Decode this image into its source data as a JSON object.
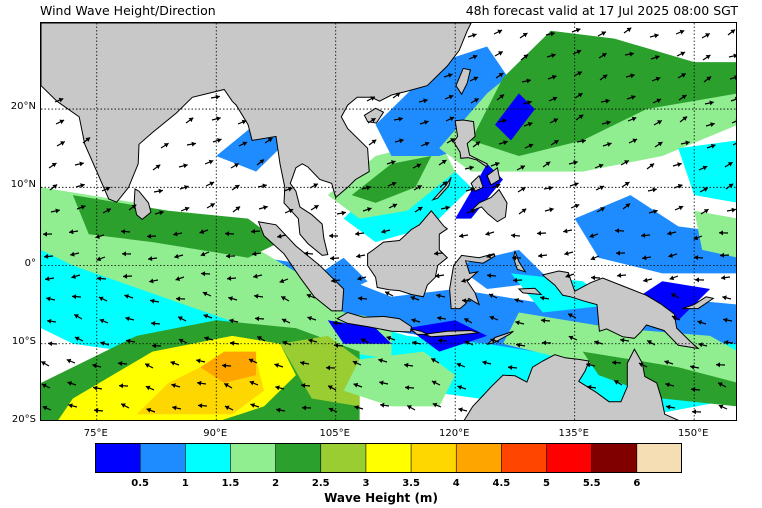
{
  "header": {
    "title": "Wind Wave Height/Direction",
    "forecast": "48h forecast valid at 17 Jul 2025 08:00 SGT"
  },
  "map": {
    "lon_range": [
      68,
      155.5
    ],
    "lat_range": [
      -20,
      31
    ],
    "grid_lons": [
      75,
      90,
      105,
      120,
      135,
      150
    ],
    "grid_lats": [
      20,
      10,
      0,
      -10,
      -20
    ],
    "lat_labels": [
      {
        "lat": 20,
        "text": "20°N"
      },
      {
        "lat": 10,
        "text": "10°N"
      },
      {
        "lat": 0,
        "text": "0°"
      },
      {
        "lat": -10,
        "text": "10°S"
      },
      {
        "lat": -20,
        "text": "20°S"
      }
    ],
    "lon_labels": [
      {
        "lon": 75,
        "text": "75°E"
      },
      {
        "lon": 90,
        "text": "90°E"
      },
      {
        "lon": 105,
        "text": "105°E"
      },
      {
        "lon": 120,
        "text": "120°E"
      },
      {
        "lon": 135,
        "text": "135°E"
      },
      {
        "lon": 150,
        "text": "150°E"
      }
    ],
    "land_color": "#c8c8c8"
  },
  "colorbar": {
    "title": "Wave Height (m)",
    "colors": [
      "#0000ff",
      "#1e8cff",
      "#00ffff",
      "#90ee90",
      "#2ca02c",
      "#9acd32",
      "#ffff00",
      "#ffd700",
      "#ffa500",
      "#ff4500",
      "#ff0000",
      "#800000",
      "#f5deb3"
    ],
    "ticks": [
      "0.5",
      "1",
      "1.5",
      "2",
      "2.5",
      "3",
      "3.5",
      "4",
      "4.5",
      "5",
      "5.5",
      "6"
    ]
  }
}
